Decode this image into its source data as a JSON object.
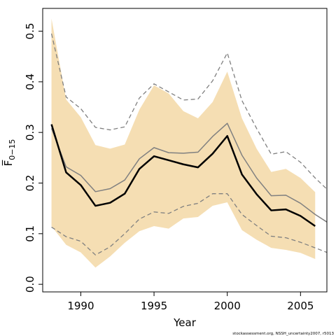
{
  "chart_data": {
    "type": "line",
    "xlabel": "Year",
    "ylabel": "F̅",
    "ylabel_sub": "0−15",
    "credit": "stockassessment.org, NSSH_uncertainty2007, r5013",
    "xlim": [
      1987.4,
      2006.8
    ],
    "ylim": [
      -0.015,
      0.545
    ],
    "x_ticks": [
      1990,
      1995,
      2000,
      2005
    ],
    "x_tick_labels": [
      "1990",
      "1995",
      "2000",
      "2005"
    ],
    "y_ticks": [
      0.0,
      0.1,
      0.2,
      0.3,
      0.4,
      0.5
    ],
    "y_tick_labels": [
      "0.0",
      "0.1",
      "0.2",
      "0.3",
      "0.4",
      "0.5"
    ],
    "grid": false,
    "colors": {
      "band": "#f5deb3",
      "estimate": "#000000",
      "previous": "#808080",
      "previous_ci": "#808080"
    },
    "x": [
      1988,
      1989,
      1990,
      1991,
      1992,
      1993,
      1994,
      1995,
      1996,
      1997,
      1998,
      1999,
      2000,
      2001,
      2002,
      2003,
      2004,
      2005,
      2006
    ],
    "band": {
      "upper": [
        0.525,
        0.365,
        0.33,
        0.275,
        0.268,
        0.276,
        0.345,
        0.393,
        0.377,
        0.342,
        0.328,
        0.36,
        0.42,
        0.328,
        0.268,
        0.222,
        0.228,
        0.21,
        0.182
      ],
      "lower": [
        0.115,
        0.078,
        0.063,
        0.033,
        0.055,
        0.082,
        0.105,
        0.115,
        0.11,
        0.13,
        0.133,
        0.155,
        0.162,
        0.107,
        0.088,
        0.072,
        0.068,
        0.062,
        0.05
      ]
    },
    "series": [
      {
        "style": "solid-thick",
        "values": [
          0.316,
          0.221,
          0.196,
          0.155,
          0.161,
          0.179,
          0.228,
          0.253,
          0.245,
          0.237,
          0.231,
          0.258,
          0.293,
          0.217,
          0.178,
          0.146,
          0.148,
          0.135,
          0.115
        ]
      },
      {
        "style": "solid-grey",
        "values": [
          0.308,
          0.232,
          0.215,
          0.183,
          0.189,
          0.206,
          0.248,
          0.27,
          0.26,
          0.259,
          0.261,
          0.292,
          0.318,
          0.255,
          0.21,
          0.175,
          0.176,
          0.16,
          0.138
        ]
      },
      {
        "style": "dashed-upper",
        "values": [
          0.495,
          0.37,
          0.347,
          0.31,
          0.305,
          0.311,
          0.368,
          0.396,
          0.38,
          0.364,
          0.366,
          0.402,
          0.457,
          0.363,
          0.308,
          0.257,
          0.262,
          0.241,
          0.21
        ]
      },
      {
        "style": "dashed-lower",
        "values": [
          0.113,
          0.094,
          0.085,
          0.058,
          0.074,
          0.1,
          0.129,
          0.143,
          0.14,
          0.154,
          0.16,
          0.179,
          0.179,
          0.138,
          0.116,
          0.095,
          0.092,
          0.083,
          0.072
        ]
      }
    ],
    "extension": {
      "x_end": 2006.8,
      "previous_end": 0.123,
      "dashed_upper_end": 0.188,
      "dashed_lower_end": 0.063
    }
  }
}
